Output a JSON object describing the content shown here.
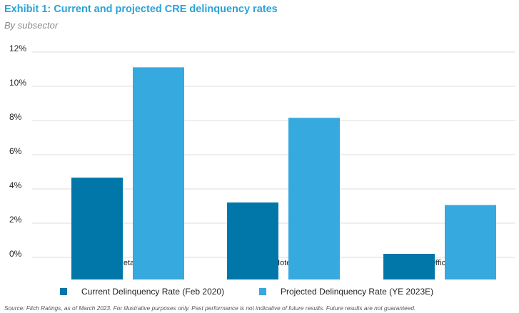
{
  "header": {
    "title": "Exhibit 1: Current and projected CRE delinquency rates",
    "subtitle": "By subsector"
  },
  "chart_data": {
    "type": "bar",
    "categories": [
      "Retail",
      "Hotel",
      "Office"
    ],
    "series": [
      {
        "name": "Current Delinquency Rate (Feb 2020)",
        "color": "#0077a8",
        "values": [
          4.45,
          3.0,
          0.0
        ]
      },
      {
        "name": "Projected Delinquency Rate (YE 2023E)",
        "color": "#36a9df",
        "values": [
          10.9,
          7.95,
          2.85
        ]
      }
    ],
    "y_ticks": [
      "12%",
      "10%",
      "8%",
      "6%",
      "4%",
      "2%",
      "0%"
    ],
    "ylim": [
      -1.5,
      12
    ],
    "grid": true,
    "legend_position": "bottom"
  },
  "footer": {
    "source": "Source: Fitch Ratings, as of March 2023. For illustrative purposes only. Past performance is not indicative of future results. Future results are not guaranteed."
  }
}
